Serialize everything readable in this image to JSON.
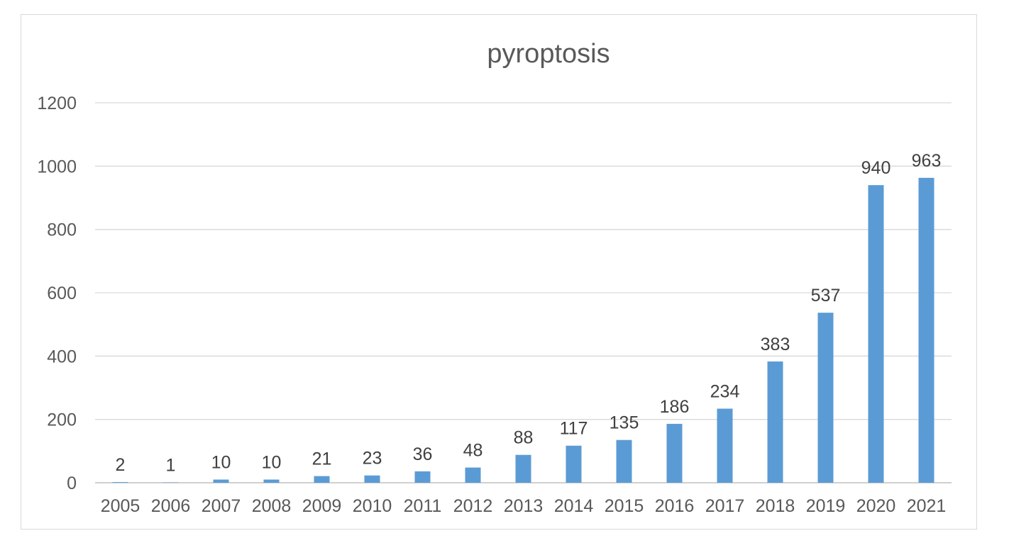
{
  "chart_data": {
    "type": "bar",
    "title": "pyroptosis",
    "xlabel": "",
    "ylabel": "",
    "categories": [
      "2005",
      "2006",
      "2007",
      "2008",
      "2009",
      "2010",
      "2011",
      "2012",
      "2013",
      "2014",
      "2015",
      "2016",
      "2017",
      "2018",
      "2019",
      "2020",
      "2021"
    ],
    "values": [
      2,
      1,
      10,
      10,
      21,
      23,
      36,
      48,
      88,
      117,
      135,
      186,
      234,
      383,
      537,
      940,
      963
    ],
    "ylim": [
      0,
      1200
    ],
    "yticks": [
      0,
      200,
      400,
      600,
      800,
      1000,
      1200
    ],
    "grid": true,
    "legend": "none",
    "data_labels": true,
    "colors": {
      "bar": "#5b9bd5",
      "grid": "#d9d9d9",
      "text": "#595959",
      "label": "#404040"
    }
  }
}
